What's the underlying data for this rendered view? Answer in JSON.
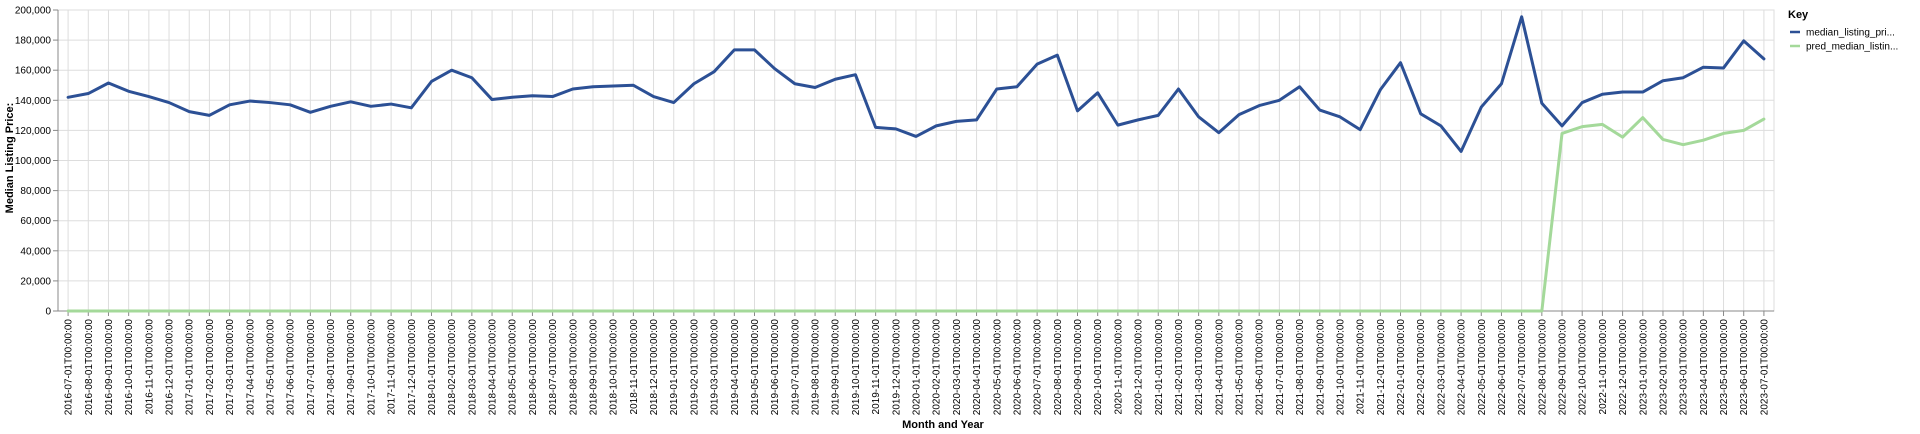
{
  "chart_data": {
    "type": "line",
    "xlabel": "Month and Year",
    "ylabel": "Median Listing Price:",
    "ylim": [
      0,
      200000
    ],
    "yticks": [
      0,
      20000,
      40000,
      60000,
      80000,
      100000,
      120000,
      140000,
      160000,
      180000,
      200000
    ],
    "ytick_labels": [
      "0",
      "20,000",
      "40,000",
      "60,000",
      "80,000",
      "100,000",
      "120,000",
      "140,000",
      "160,000",
      "180,000",
      "200,000"
    ],
    "grid": true,
    "legend_position": "top-right",
    "legend_title": "Key",
    "x": [
      "2016-07-01T00:00:00",
      "2016-08-01T00:00:00",
      "2016-09-01T00:00:00",
      "2016-10-01T00:00:00",
      "2016-11-01T00:00:00",
      "2016-12-01T00:00:00",
      "2017-01-01T00:00:00",
      "2017-02-01T00:00:00",
      "2017-03-01T00:00:00",
      "2017-04-01T00:00:00",
      "2017-05-01T00:00:00",
      "2017-06-01T00:00:00",
      "2017-07-01T00:00:00",
      "2017-08-01T00:00:00",
      "2017-09-01T00:00:00",
      "2017-10-01T00:00:00",
      "2017-11-01T00:00:00",
      "2017-12-01T00:00:00",
      "2018-01-01T00:00:00",
      "2018-02-01T00:00:00",
      "2018-03-01T00:00:00",
      "2018-04-01T00:00:00",
      "2018-05-01T00:00:00",
      "2018-06-01T00:00:00",
      "2018-07-01T00:00:00",
      "2018-08-01T00:00:00",
      "2018-09-01T00:00:00",
      "2018-10-01T00:00:00",
      "2018-11-01T00:00:00",
      "2018-12-01T00:00:00",
      "2019-01-01T00:00:00",
      "2019-02-01T00:00:00",
      "2019-03-01T00:00:00",
      "2019-04-01T00:00:00",
      "2019-05-01T00:00:00",
      "2019-06-01T00:00:00",
      "2019-07-01T00:00:00",
      "2019-08-01T00:00:00",
      "2019-09-01T00:00:00",
      "2019-10-01T00:00:00",
      "2019-11-01T00:00:00",
      "2019-12-01T00:00:00",
      "2020-01-01T00:00:00",
      "2020-02-01T00:00:00",
      "2020-03-01T00:00:00",
      "2020-04-01T00:00:00",
      "2020-05-01T00:00:00",
      "2020-06-01T00:00:00",
      "2020-07-01T00:00:00",
      "2020-08-01T00:00:00",
      "2020-09-01T00:00:00",
      "2020-10-01T00:00:00",
      "2020-11-01T00:00:00",
      "2020-12-01T00:00:00",
      "2021-01-01T00:00:00",
      "2021-02-01T00:00:00",
      "2021-03-01T00:00:00",
      "2021-04-01T00:00:00",
      "2021-05-01T00:00:00",
      "2021-06-01T00:00:00",
      "2021-07-01T00:00:00",
      "2021-08-01T00:00:00",
      "2021-09-01T00:00:00",
      "2021-10-01T00:00:00",
      "2021-11-01T00:00:00",
      "2021-12-01T00:00:00",
      "2022-01-01T00:00:00",
      "2022-02-01T00:00:00",
      "2022-03-01T00:00:00",
      "2022-04-01T00:00:00",
      "2022-05-01T00:00:00",
      "2022-06-01T00:00:00",
      "2022-07-01T00:00:00",
      "2022-08-01T00:00:00",
      "2022-09-01T00:00:00",
      "2022-10-01T00:00:00",
      "2022-11-01T00:00:00",
      "2022-12-01T00:00:00",
      "2023-01-01T00:00:00",
      "2023-02-01T00:00:00",
      "2023-03-01T00:00:00",
      "2023-04-01T00:00:00",
      "2023-05-01T00:00:00",
      "2023-06-01T00:00:00",
      "2023-07-01T00:00:00"
    ],
    "series": [
      {
        "name": "median_listing_pri...",
        "color": "#2c5095",
        "values": [
          142000,
          144500,
          151500,
          146000,
          142500,
          138500,
          132500,
          130000,
          137000,
          139500,
          138500,
          137000,
          132000,
          136000,
          139000,
          136000,
          137500,
          135000,
          152500,
          160000,
          155000,
          140500,
          142000,
          143000,
          142500,
          147500,
          149000,
          149500,
          150000,
          142500,
          138500,
          151000,
          159000,
          173500,
          173500,
          161000,
          151000,
          148500,
          154000,
          157000,
          122000,
          121000,
          116000,
          123000,
          126000,
          127000,
          147500,
          149000,
          164000,
          170000,
          133000,
          145000,
          123500,
          127000,
          130000,
          147500,
          129000,
          118500,
          130500,
          136500,
          140000,
          149000,
          133500,
          129000,
          120500,
          147000,
          165000,
          131000,
          123000,
          106000,
          135500,
          151000,
          195500,
          138000,
          123000,
          138500,
          144000,
          145500,
          145500,
          153000,
          155000,
          162000,
          161500,
          179500,
          167500
        ]
      },
      {
        "name": "pred_median_listin...",
        "color": "#a4d99a",
        "values": [
          0,
          0,
          0,
          0,
          0,
          0,
          0,
          0,
          0,
          0,
          0,
          0,
          0,
          0,
          0,
          0,
          0,
          0,
          0,
          0,
          0,
          0,
          0,
          0,
          0,
          0,
          0,
          0,
          0,
          0,
          0,
          0,
          0,
          0,
          0,
          0,
          0,
          0,
          0,
          0,
          0,
          0,
          0,
          0,
          0,
          0,
          0,
          0,
          0,
          0,
          0,
          0,
          0,
          0,
          0,
          0,
          0,
          0,
          0,
          0,
          0,
          0,
          0,
          0,
          0,
          0,
          0,
          0,
          0,
          0,
          0,
          0,
          0,
          0,
          118000,
          122500,
          124000,
          115500,
          128500,
          114000,
          110500,
          113500,
          118000,
          120000,
          127500
        ]
      }
    ]
  }
}
